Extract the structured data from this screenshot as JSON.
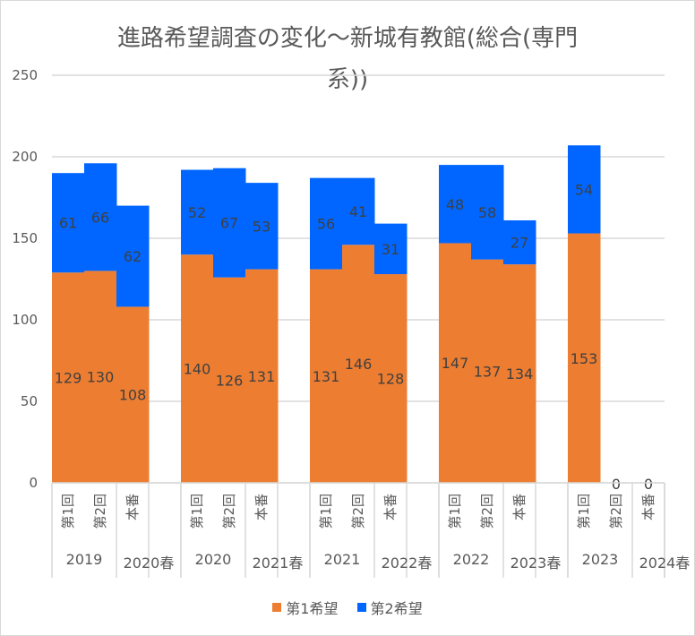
{
  "chart_data": {
    "type": "bar",
    "stacked": true,
    "title": "進路希望調査の変化～新城有教館(総合(専門系))",
    "title_lines": [
      "進路希望調査の変化～新城有教館(総合(専門",
      "系))"
    ],
    "xlabel": "",
    "ylabel": "",
    "ylim": [
      0,
      250
    ],
    "yticks": [
      0,
      50,
      100,
      150,
      200,
      250
    ],
    "grid": true,
    "legend_position": "bottom",
    "groups": [
      {
        "year_label": "2019",
        "spring_label": "2020春"
      },
      {
        "year_label": "2020",
        "spring_label": "2021春"
      },
      {
        "year_label": "2021",
        "spring_label": "2022春"
      },
      {
        "year_label": "2022",
        "spring_label": "2023春"
      },
      {
        "year_label": "2023",
        "spring_label": "2024春"
      }
    ],
    "sub_categories": [
      "第1回",
      "第2回",
      "本番"
    ],
    "categories": [
      "2019 第1回",
      "2019 第2回",
      "2020春 本番",
      "2020 第1回",
      "2020 第2回",
      "2021春 本番",
      "2021 第1回",
      "2021 第2回",
      "2022春 本番",
      "2022 第1回",
      "2022 第2回",
      "2023春 本番",
      "2023 第1回",
      "2023 第2回",
      "2024春 本番"
    ],
    "series": [
      {
        "name": "第1希望",
        "color": "#ED7D31",
        "values": [
          129,
          130,
          108,
          140,
          126,
          131,
          131,
          146,
          128,
          147,
          137,
          134,
          153,
          0,
          0
        ]
      },
      {
        "name": "第2希望",
        "color": "#0066FF",
        "values": [
          61,
          66,
          62,
          52,
          67,
          53,
          56,
          41,
          31,
          48,
          58,
          27,
          54,
          null,
          null
        ]
      }
    ]
  }
}
